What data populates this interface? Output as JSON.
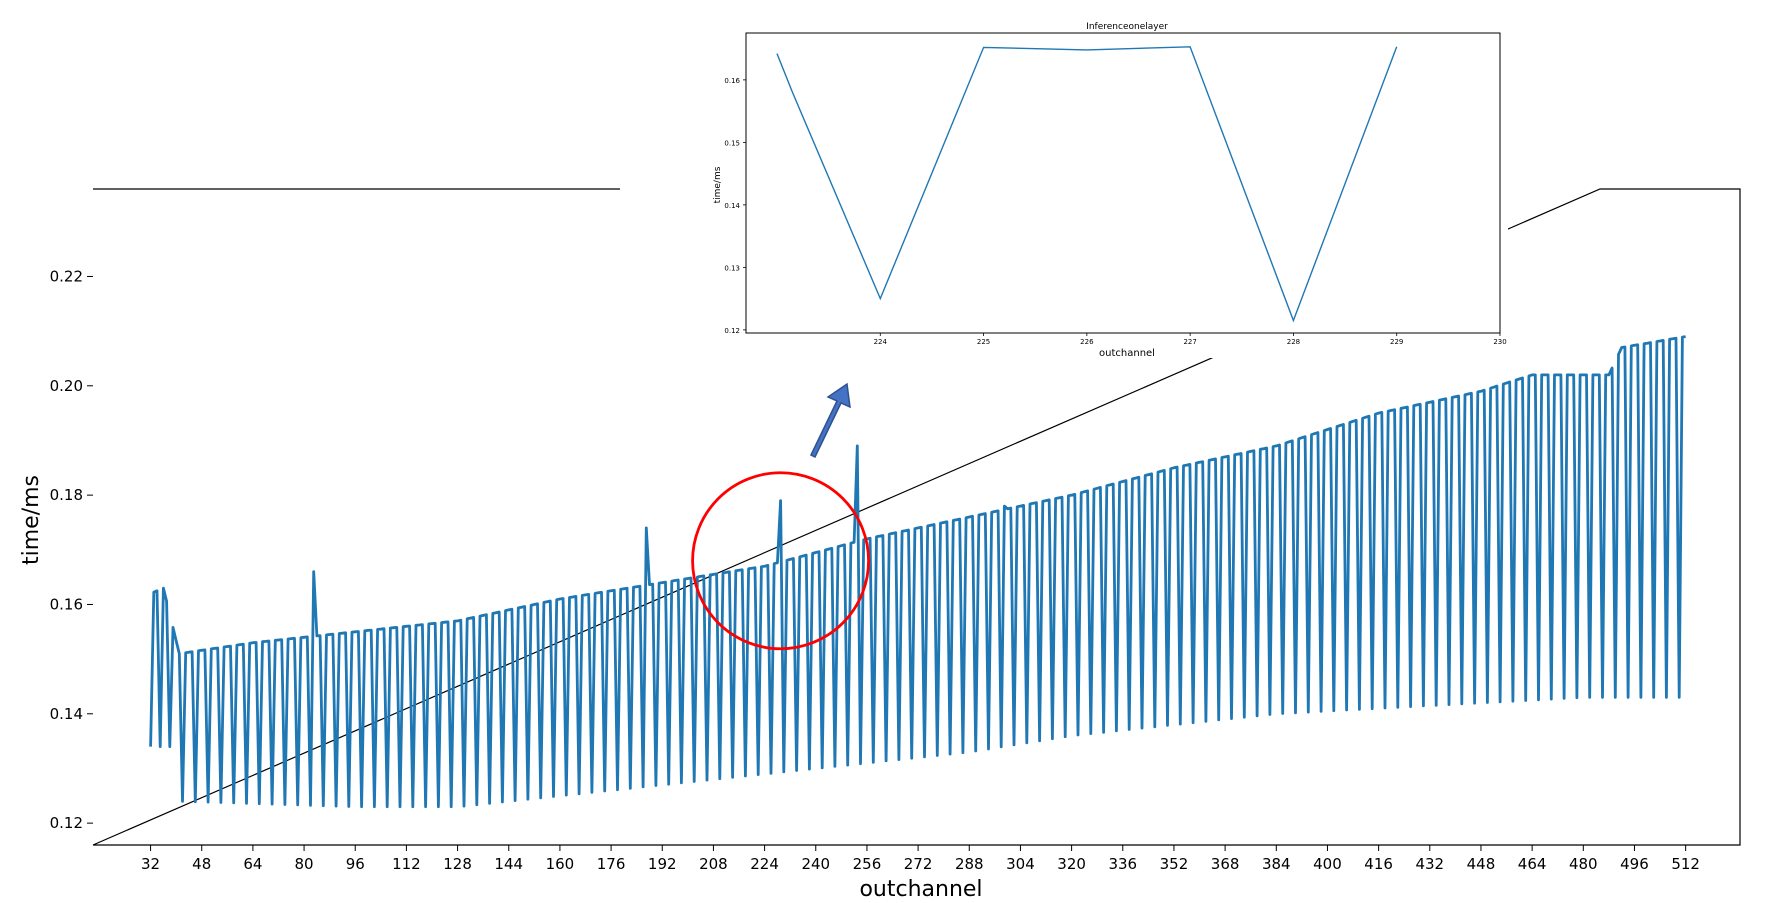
{
  "chart_data": [
    {
      "id": "main",
      "type": "line",
      "title": "",
      "xlabel": "outchannel",
      "ylabel": "time/ms",
      "xlim": [
        14,
        529
      ],
      "ylim": [
        0.116,
        0.236
      ],
      "xticks": [
        32,
        48,
        64,
        80,
        96,
        112,
        128,
        144,
        160,
        176,
        192,
        208,
        224,
        240,
        256,
        272,
        288,
        304,
        320,
        336,
        352,
        368,
        384,
        400,
        416,
        432,
        448,
        464,
        480,
        496,
        512
      ],
      "yticks": [
        0.12,
        0.14,
        0.16,
        0.18,
        0.2,
        0.22
      ],
      "grid": false,
      "color": "#1f77b4",
      "series": [
        {
          "pattern": "sawtooth: high value at most outchannels, sharp drop to a low value about every fourth channel",
          "x_range": [
            32,
            512
          ],
          "high_trend": [
            [
              32,
              0.162
            ],
            [
              36,
              0.163
            ],
            [
              41,
              0.151
            ],
            [
              64,
              0.153
            ],
            [
              96,
              0.155
            ],
            [
              128,
              0.157
            ],
            [
              160,
              0.161
            ],
            [
              192,
              0.164
            ],
            [
              224,
              0.167
            ],
            [
              256,
              0.172
            ],
            [
              288,
              0.176
            ],
            [
              320,
              0.18
            ],
            [
              352,
              0.185
            ],
            [
              384,
              0.189
            ],
            [
              416,
              0.195
            ],
            [
              448,
              0.199
            ],
            [
              464,
              0.202
            ],
            [
              488,
              0.202
            ],
            [
              492,
              0.207
            ],
            [
              512,
              0.209
            ]
          ],
          "low_trend": [
            [
              32,
              0.134
            ],
            [
              40,
              0.134
            ],
            [
              42,
              0.124
            ],
            [
              96,
              0.123
            ],
            [
              128,
              0.123
            ],
            [
              160,
              0.125
            ],
            [
              192,
              0.127
            ],
            [
              224,
              0.129
            ],
            [
              256,
              0.131
            ],
            [
              288,
              0.133
            ],
            [
              320,
              0.136
            ],
            [
              352,
              0.138
            ],
            [
              384,
              0.14
            ],
            [
              416,
              0.141
            ],
            [
              448,
              0.142
            ],
            [
              480,
              0.143
            ],
            [
              512,
              0.143
            ]
          ],
          "spikes": [
            [
              83,
              0.166
            ],
            [
              187,
              0.174
            ],
            [
              229,
              0.179
            ],
            [
              253,
              0.189
            ],
            [
              299,
              0.178
            ]
          ]
        }
      ],
      "annotations": [
        {
          "type": "circle",
          "center": [
            229,
            0.168
          ],
          "color": "#ff0000"
        },
        {
          "type": "arrow",
          "color": "#4472c4",
          "points_to": "inset"
        }
      ]
    },
    {
      "id": "inset",
      "type": "line",
      "title": "Inferenceonelayer",
      "xlabel": "outchannel",
      "ylabel": "time/ms",
      "xlim": [
        222.7,
        230
      ],
      "ylim": [
        0.1195,
        0.1675
      ],
      "xticks": [
        224,
        225,
        226,
        227,
        228,
        229,
        230
      ],
      "yticks": [
        0.12,
        0.13,
        0.14,
        0.15,
        0.16
      ],
      "grid": false,
      "color": "#1f77b4",
      "x": [
        223,
        223.15,
        224,
        225,
        226,
        227,
        228,
        229
      ],
      "y": [
        0.1642,
        0.158,
        0.125,
        0.1652,
        0.1648,
        0.1653,
        0.1215,
        0.1653
      ]
    }
  ]
}
